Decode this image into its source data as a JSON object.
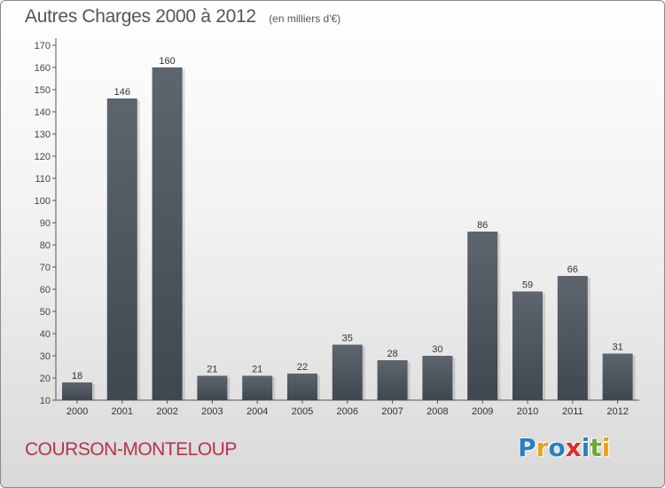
{
  "chart_data": {
    "type": "bar",
    "title": "Autres Charges 2000 à 2012",
    "subtitle": "(en milliers d'€)",
    "xlabel": "",
    "ylabel": "",
    "categories": [
      "2000",
      "2001",
      "2002",
      "2003",
      "2004",
      "2005",
      "2006",
      "2007",
      "2008",
      "2009",
      "2010",
      "2011",
      "2012"
    ],
    "values": [
      18,
      146,
      160,
      21,
      21,
      22,
      35,
      28,
      30,
      86,
      59,
      66,
      31
    ],
    "ylim": [
      10,
      170
    ],
    "yticks": [
      10,
      20,
      30,
      40,
      50,
      60,
      70,
      80,
      90,
      100,
      110,
      120,
      130,
      140,
      150,
      160,
      170
    ],
    "grid": false,
    "data_labels": true,
    "bar_color": "#3f4750"
  },
  "footer": {
    "commune": "COURSON-MONTELOUP",
    "logo_text": "Proxiti",
    "logo_letters": [
      {
        "ch": "P",
        "color": "#2b7fc1"
      },
      {
        "ch": "r",
        "color": "#e8a21b"
      },
      {
        "ch": "o",
        "color": "#2b7fc1"
      },
      {
        "ch": "x",
        "color": "#d9312b"
      },
      {
        "ch": "i",
        "color": "#2b7fc1"
      },
      {
        "ch": "t",
        "color": "#6aa935"
      },
      {
        "ch": "i",
        "color": "#e8a21b"
      }
    ]
  },
  "colors": {
    "title": "#555555",
    "commune": "#b5344a",
    "axis": "#555555"
  }
}
